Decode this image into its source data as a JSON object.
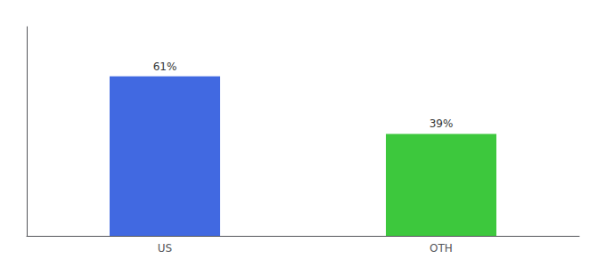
{
  "chart_data": {
    "type": "bar",
    "categories": [
      "US",
      "OTH"
    ],
    "values": [
      61,
      39
    ],
    "value_labels": [
      "61%",
      "39%"
    ],
    "colors": [
      "#4169E1",
      "#3DC83D"
    ],
    "ylim": [
      0,
      80
    ],
    "data_labels": true,
    "tick_labels": "x",
    "grid": false
  }
}
